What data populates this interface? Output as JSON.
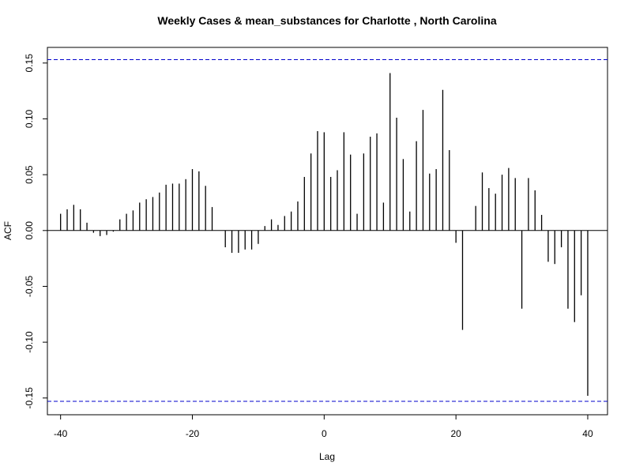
{
  "chart_data": {
    "type": "bar",
    "title": "Weekly Cases & mean_substances for Charlotte , North Carolina",
    "xlabel": "Lag",
    "ylabel": "ACF",
    "xlim": [
      -42,
      43
    ],
    "ylim": [
      -0.165,
      0.164
    ],
    "x_ticks": [
      -40,
      -20,
      0,
      20,
      40
    ],
    "y_ticks": [
      -0.15,
      -0.1,
      -0.05,
      0.0,
      0.05,
      0.1,
      0.15
    ],
    "y_tick_labels": [
      "-0.15",
      "-0.10",
      "-0.05",
      "0.00",
      "0.05",
      "0.10",
      "0.15"
    ],
    "confidence_band": 0.153,
    "colors": {
      "bars": "#000000",
      "confidence": "#0000cc",
      "axes": "#000000"
    },
    "grid": false,
    "series": [
      {
        "lags": [
          -40,
          -39,
          -38,
          -37,
          -36,
          -35,
          -34,
          -33,
          -32,
          -31,
          -30,
          -29,
          -28,
          -27,
          -26,
          -25,
          -24,
          -23,
          -22,
          -21,
          -20,
          -19,
          -18,
          -17,
          -16,
          -15,
          -14,
          -13,
          -12,
          -11,
          -10,
          -9,
          -8,
          -7,
          -6,
          -5,
          -4,
          -3,
          -2,
          -1,
          0,
          1,
          2,
          3,
          4,
          5,
          6,
          7,
          8,
          9,
          10,
          11,
          12,
          13,
          14,
          15,
          16,
          17,
          18,
          19,
          20,
          21,
          22,
          23,
          24,
          25,
          26,
          27,
          28,
          29,
          30,
          31,
          32,
          33,
          34,
          35,
          36,
          37,
          38,
          39,
          40
        ],
        "values": [
          0.015,
          0.019,
          0.023,
          0.019,
          0.007,
          -0.002,
          -0.005,
          -0.004,
          -0.001,
          0.01,
          0.015,
          0.018,
          0.025,
          0.028,
          0.03,
          0.034,
          0.041,
          0.042,
          0.042,
          0.046,
          0.055,
          0.053,
          0.04,
          0.021,
          0.0,
          -0.015,
          -0.02,
          -0.02,
          -0.017,
          -0.017,
          -0.012,
          0.004,
          0.01,
          0.005,
          0.013,
          0.017,
          0.026,
          0.048,
          0.069,
          0.089,
          0.088,
          0.048,
          0.054,
          0.088,
          0.068,
          0.015,
          0.069,
          0.084,
          0.087,
          0.025,
          0.141,
          0.101,
          0.064,
          0.017,
          0.08,
          0.108,
          0.051,
          0.055,
          0.126,
          0.072,
          -0.011,
          -0.089,
          0.0,
          0.022,
          0.052,
          0.038,
          0.033,
          0.05,
          0.056,
          0.047,
          -0.07,
          0.047,
          0.036,
          0.014,
          -0.028,
          -0.03,
          -0.015,
          -0.07,
          -0.082,
          -0.058,
          -0.148
        ]
      }
    ]
  }
}
